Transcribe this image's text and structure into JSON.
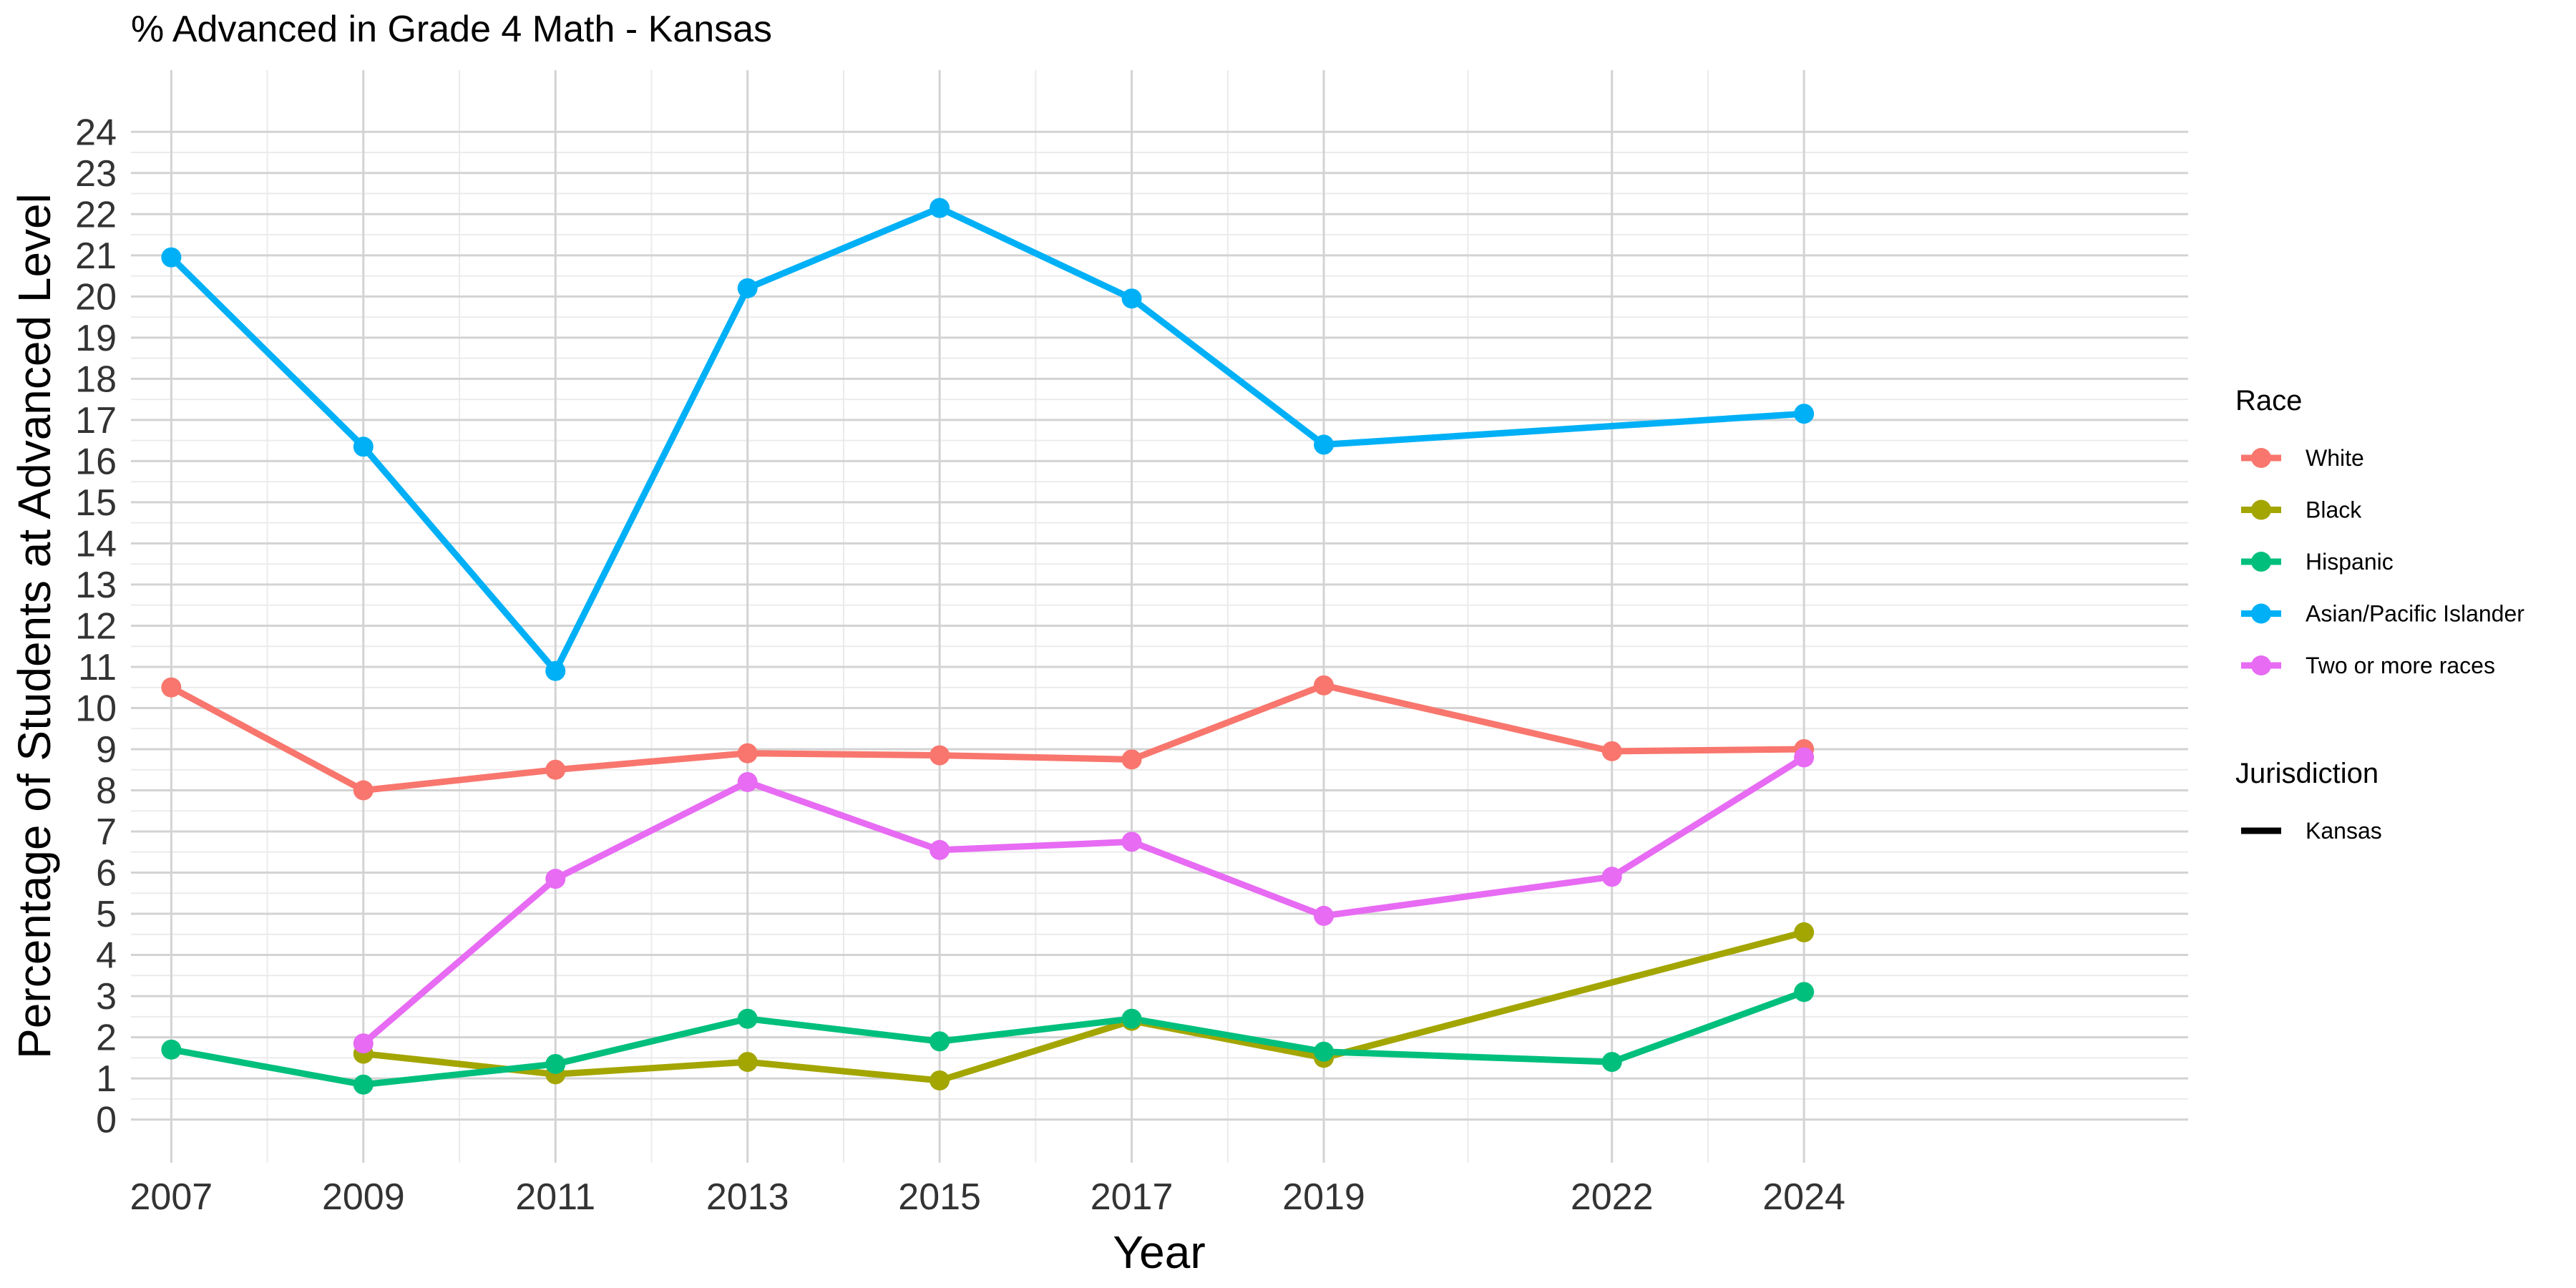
{
  "chart_data": {
    "type": "line",
    "title": "% Advanced in Grade 4 Math - Kansas",
    "xlabel": "Year",
    "ylabel": "Percentage of Students at Advanced Level",
    "x": [
      2007,
      2009,
      2011,
      2013,
      2015,
      2017,
      2019,
      2022,
      2024
    ],
    "x_tick_labels": [
      "2007",
      "2009",
      "2011",
      "2013",
      "2015",
      "2017",
      "2019",
      "2022",
      "2024"
    ],
    "y_ticks": [
      0,
      1,
      2,
      3,
      4,
      5,
      6,
      7,
      8,
      9,
      10,
      11,
      12,
      13,
      14,
      15,
      16,
      17,
      18,
      19,
      20,
      21,
      22,
      23,
      24
    ],
    "xlim": [
      2006.58,
      2028.0
    ],
    "ylim": [
      -1.05,
      25.5
    ],
    "grid": true,
    "legend_placement": "right",
    "legend_title": "Race",
    "legend2_title": "Jurisdiction",
    "legend2_entries": [
      {
        "label": "Kansas",
        "color": "#000000"
      }
    ],
    "series": [
      {
        "name": "White",
        "color": "#F8766D",
        "values": [
          10.5,
          8.0,
          8.5,
          8.9,
          8.85,
          8.75,
          10.55,
          8.95,
          9.0
        ]
      },
      {
        "name": "Black",
        "color": "#A3A500",
        "values": [
          null,
          1.6,
          1.1,
          1.4,
          0.95,
          2.4,
          1.5,
          null,
          4.55
        ]
      },
      {
        "name": "Hispanic",
        "color": "#00BF7D",
        "values": [
          1.7,
          0.85,
          1.35,
          2.45,
          1.9,
          2.45,
          1.65,
          1.4,
          3.1
        ]
      },
      {
        "name": "Asian/Pacific Islander",
        "color": "#00B0F6",
        "values": [
          20.95,
          16.35,
          10.9,
          20.2,
          22.15,
          19.95,
          16.4,
          null,
          17.15
        ]
      },
      {
        "name": "Two or more races",
        "color": "#E76BF3",
        "values": [
          null,
          1.85,
          5.85,
          8.2,
          6.55,
          6.75,
          4.95,
          5.9,
          8.8
        ]
      }
    ]
  }
}
